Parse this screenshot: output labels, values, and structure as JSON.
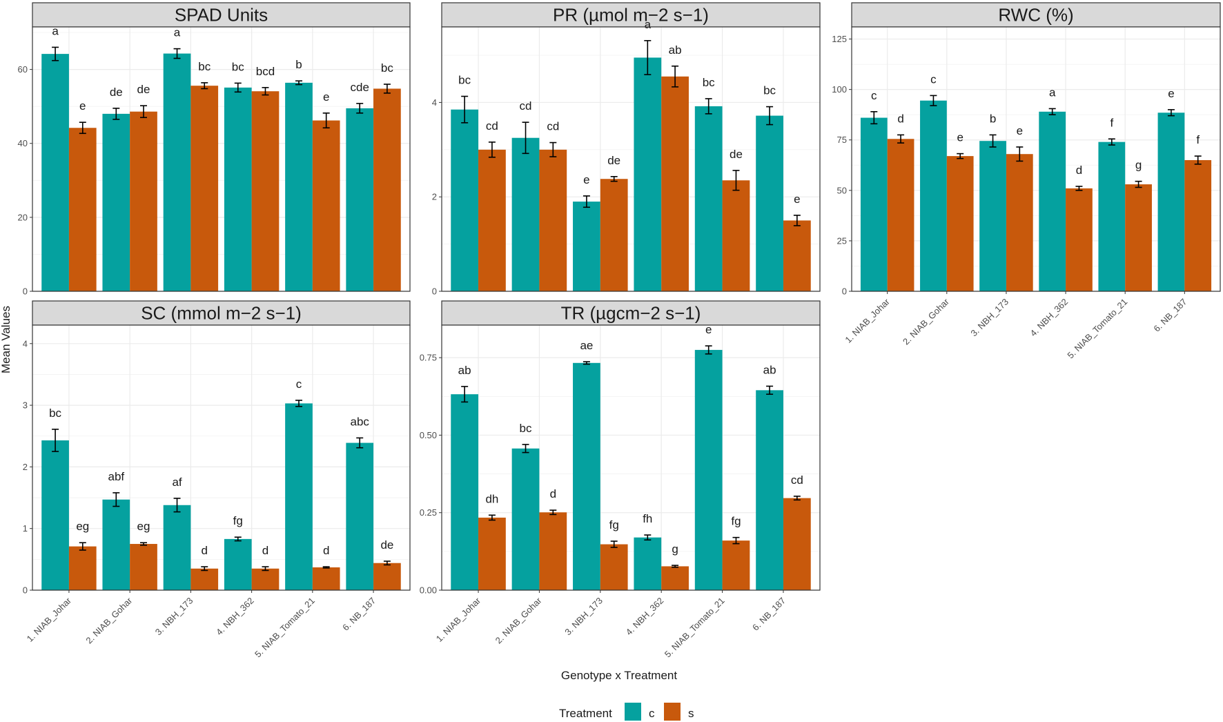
{
  "colors": {
    "c": "#05a19f",
    "s": "#c8590c",
    "strip_bg": "#d9d9d9",
    "panel_border": "#333333",
    "grid": "#ebebeb"
  },
  "y_axis_label": "Mean Values",
  "x_axis_label": "Genotype x Treatment",
  "legend": {
    "title": "Treatment",
    "items": [
      {
        "key": "c",
        "label": "c"
      },
      {
        "key": "s",
        "label": "s"
      }
    ]
  },
  "chart_data": [
    {
      "type": "bar",
      "title": "SPAD Units",
      "categories": [
        "1. NIAB_Johar",
        "2. NIAB_Gohar",
        "3. NBH_173",
        "4. NBH_362",
        "5. NIAB_Tomato_21",
        "6. NB_187"
      ],
      "ylim": [
        0,
        71.5
      ],
      "yticks": [
        0,
        20,
        40,
        60
      ],
      "ytick_labels": [
        "0",
        "20",
        "40",
        "60"
      ],
      "series": [
        {
          "name": "c",
          "values": [
            64.2,
            48,
            64.3,
            55.1,
            56.4,
            49.5
          ],
          "errors": [
            1.8,
            1.5,
            1.3,
            1.2,
            0.5,
            1.3
          ],
          "labels": [
            "a",
            "de",
            "a",
            "bc",
            "b",
            "cde"
          ]
        },
        {
          "name": "s",
          "values": [
            44.2,
            48.6,
            55.6,
            54.1,
            46.2,
            54.8
          ],
          "errors": [
            1.5,
            1.6,
            0.8,
            1.0,
            2.0,
            1.2
          ],
          "labels": [
            "e",
            "de",
            "bc",
            "bcd",
            "e",
            "bc"
          ]
        }
      ]
    },
    {
      "type": "bar",
      "title": "PR (µmol m−2 s−1)",
      "categories": [
        "1. NIAB_Johar",
        "2. NIAB_Gohar",
        "3. NBH_173",
        "4. NBH_362",
        "5. NIAB_Tomato_21",
        "6. NB_187"
      ],
      "ylim": [
        0,
        5.6
      ],
      "yticks": [
        0,
        2,
        4
      ],
      "ytick_labels": [
        "0",
        "2",
        "4"
      ],
      "series": [
        {
          "name": "c",
          "values": [
            3.85,
            3.25,
            1.9,
            4.95,
            3.92,
            3.72
          ],
          "errors": [
            0.28,
            0.33,
            0.12,
            0.36,
            0.16,
            0.19
          ],
          "labels": [
            "bc",
            "cd",
            "e",
            "a",
            "bc",
            "bc"
          ]
        },
        {
          "name": "s",
          "values": [
            3.0,
            3.0,
            2.38,
            4.55,
            2.35,
            1.5
          ],
          "errors": [
            0.16,
            0.15,
            0.05,
            0.22,
            0.21,
            0.11
          ],
          "labels": [
            "cd",
            "cd",
            "de",
            "ab",
            "de",
            "e"
          ]
        }
      ]
    },
    {
      "type": "bar",
      "title": "RWC (%)",
      "categories": [
        "1. NIAB_Johar",
        "2. NIAB_Gohar",
        "3. NBH_173",
        "4. NBH_362",
        "5. NIAB_Tomato_21",
        "6. NB_187"
      ],
      "ylim": [
        0,
        131
      ],
      "yticks": [
        0,
        25,
        50,
        75,
        100,
        125
      ],
      "ytick_labels": [
        "0",
        "25",
        "50",
        "75",
        "100",
        "125"
      ],
      "series": [
        {
          "name": "c",
          "values": [
            86,
            94.5,
            74.5,
            89,
            74,
            88.5
          ],
          "errors": [
            3.0,
            2.5,
            3.0,
            1.5,
            1.5,
            1.5
          ],
          "labels": [
            "c",
            "c",
            "b",
            "a",
            "f",
            "e"
          ]
        },
        {
          "name": "s",
          "values": [
            75.5,
            67,
            68,
            51,
            53,
            65
          ],
          "errors": [
            2.0,
            1.2,
            3.5,
            1.0,
            1.5,
            2.0
          ],
          "labels": [
            "d",
            "e",
            "e",
            "d",
            "g",
            "f"
          ]
        }
      ]
    },
    {
      "type": "bar",
      "title": "SC (mmol m−2 s−1)",
      "categories": [
        "1. NIAB_Johar",
        "2. NIAB_Gohar",
        "3. NBH_173",
        "4. NBH_362",
        "5. NIAB_Tomato_21",
        "6. NB_187"
      ],
      "ylim": [
        0,
        4.3
      ],
      "yticks": [
        0,
        1,
        2,
        3,
        4
      ],
      "ytick_labels": [
        "0",
        "1",
        "2",
        "3",
        "4"
      ],
      "series": [
        {
          "name": "c",
          "values": [
            2.43,
            1.47,
            1.38,
            0.83,
            3.03,
            2.39
          ],
          "errors": [
            0.18,
            0.11,
            0.11,
            0.03,
            0.05,
            0.08
          ],
          "labels": [
            "bc",
            "abf",
            "af",
            "fg",
            "c",
            "abc"
          ]
        },
        {
          "name": "s",
          "values": [
            0.71,
            0.75,
            0.35,
            0.35,
            0.37,
            0.44
          ],
          "errors": [
            0.06,
            0.02,
            0.03,
            0.03,
            0.01,
            0.03
          ],
          "labels": [
            "eg",
            "eg",
            "d",
            "d",
            "d",
            "de"
          ]
        }
      ]
    },
    {
      "type": "bar",
      "title": "TR (µgcm−2 s−1)",
      "categories": [
        "1. NIAB_Johar",
        "2. NIAB_Gohar",
        "3. NBH_173",
        "4. NBH_362",
        "5. NIAB_Tomato_21",
        "6. NB_187"
      ],
      "ylim": [
        0,
        0.855
      ],
      "yticks": [
        0,
        0.25,
        0.5,
        0.75
      ],
      "ytick_labels": [
        "0.00",
        "0.25",
        "0.50",
        "0.75"
      ],
      "series": [
        {
          "name": "c",
          "values": [
            0.632,
            0.457,
            0.733,
            0.17,
            0.775,
            0.645
          ],
          "errors": [
            0.025,
            0.013,
            0.004,
            0.008,
            0.013,
            0.013
          ],
          "labels": [
            "ab",
            "bc",
            "ae",
            "fh",
            "e",
            "ab"
          ]
        },
        {
          "name": "s",
          "values": [
            0.234,
            0.251,
            0.148,
            0.077,
            0.16,
            0.297
          ],
          "errors": [
            0.008,
            0.007,
            0.01,
            0.003,
            0.01,
            0.006
          ],
          "labels": [
            "dh",
            "d",
            "fg",
            "g",
            "fg",
            "cd"
          ]
        }
      ]
    }
  ]
}
